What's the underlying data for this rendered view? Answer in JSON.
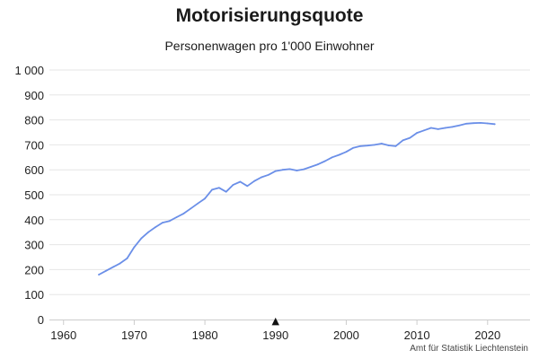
{
  "chart_data": {
    "type": "line",
    "title": "Motorisierungsquote",
    "subtitle": "Personenwagen pro 1'000 Einwohner",
    "xlabel": "",
    "ylabel": "",
    "xlim": [
      1958,
      2026
    ],
    "ylim": [
      0,
      1000
    ],
    "x_ticks": [
      1960,
      1970,
      1980,
      1990,
      2000,
      2010,
      2020
    ],
    "y_ticks": [
      0,
      100,
      200,
      300,
      400,
      500,
      600,
      700,
      800,
      900,
      1000
    ],
    "y_tick_labels": [
      "0",
      "100",
      "200",
      "300",
      "400",
      "500",
      "600",
      "700",
      "800",
      "900",
      "1 000"
    ],
    "grid": "horizontal",
    "legend": "none",
    "marker": {
      "x": 1990,
      "symbol": "▲"
    },
    "colors": {
      "line": "#6b8fe8",
      "grid": "#e6e6e6",
      "axis": "#cccccc",
      "marker": "#111111"
    },
    "series": [
      {
        "x": [
          1965,
          1966,
          1967,
          1968,
          1969,
          1970,
          1971,
          1972,
          1973,
          1974,
          1975,
          1976,
          1977,
          1978,
          1979,
          1980,
          1981,
          1982,
          1983,
          1984,
          1985,
          1986,
          1987,
          1988,
          1989,
          1990,
          1991,
          1992,
          1993,
          1994,
          1995,
          1996,
          1997,
          1998,
          1999,
          2000,
          2001,
          2002,
          2003,
          2004,
          2005,
          2006,
          2007,
          2008,
          2009,
          2010,
          2011,
          2012,
          2013,
          2014,
          2015,
          2016,
          2017,
          2018,
          2019,
          2020,
          2021
        ],
        "values": [
          180,
          195,
          210,
          225,
          245,
          290,
          325,
          350,
          370,
          388,
          395,
          410,
          425,
          445,
          465,
          485,
          520,
          528,
          512,
          540,
          552,
          535,
          555,
          570,
          580,
          595,
          600,
          603,
          597,
          602,
          612,
          622,
          635,
          650,
          660,
          672,
          688,
          695,
          697,
          700,
          705,
          698,
          695,
          718,
          728,
          748,
          758,
          768,
          763,
          768,
          772,
          778,
          785,
          787,
          788,
          786,
          783
        ]
      }
    ]
  },
  "source": "Amt für Statistik Liechtenstein"
}
